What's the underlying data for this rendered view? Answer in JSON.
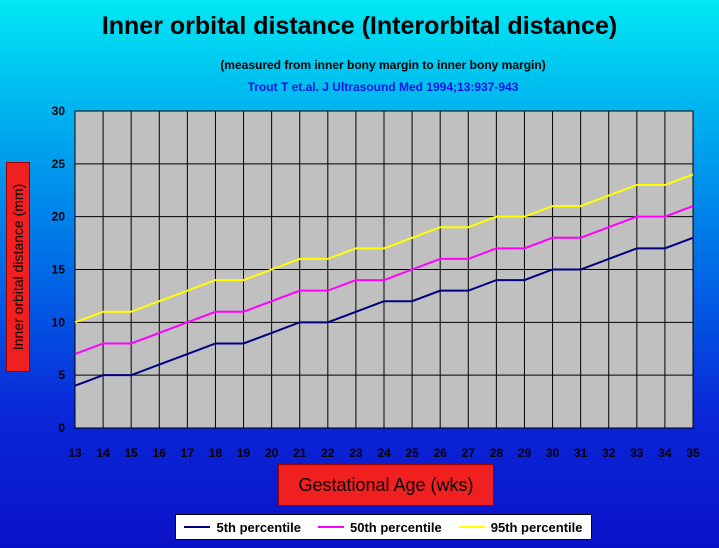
{
  "chart_data": {
    "type": "line",
    "title": "Inner orbital distance (Interorbital distance)",
    "subtitle": "(measured from inner bony margin to inner bony margin)",
    "source": "Trout T et.al. J Ultrasound Med 1994;13:937-943",
    "xlabel": "Gestational Age (wks)",
    "ylabel": "Inner orbital distance (mm)",
    "x": [
      13,
      14,
      15,
      16,
      17,
      18,
      19,
      20,
      21,
      22,
      23,
      24,
      25,
      26,
      27,
      28,
      29,
      30,
      31,
      32,
      33,
      34,
      35
    ],
    "ylim": [
      0,
      30
    ],
    "yticks": [
      0,
      5,
      10,
      15,
      20,
      25,
      30
    ],
    "grid": true,
    "legend_position": "bottom",
    "series": [
      {
        "name": "5th percentile",
        "color": "#000080",
        "values": [
          4,
          5,
          5,
          6,
          7,
          8,
          8,
          9,
          10,
          10,
          11,
          12,
          12,
          13,
          13,
          14,
          14,
          15,
          15,
          16,
          17,
          17,
          18
        ]
      },
      {
        "name": "50th percentile",
        "color": "#ff00ff",
        "values": [
          7,
          8,
          8,
          9,
          10,
          11,
          11,
          12,
          13,
          13,
          14,
          14,
          15,
          16,
          16,
          17,
          17,
          18,
          18,
          19,
          20,
          20,
          21
        ]
      },
      {
        "name": "95th percentile",
        "color": "#ffff00",
        "values": [
          10,
          11,
          11,
          12,
          13,
          14,
          14,
          15,
          16,
          16,
          17,
          17,
          18,
          19,
          19,
          20,
          20,
          21,
          21,
          22,
          23,
          23,
          24
        ]
      }
    ]
  }
}
